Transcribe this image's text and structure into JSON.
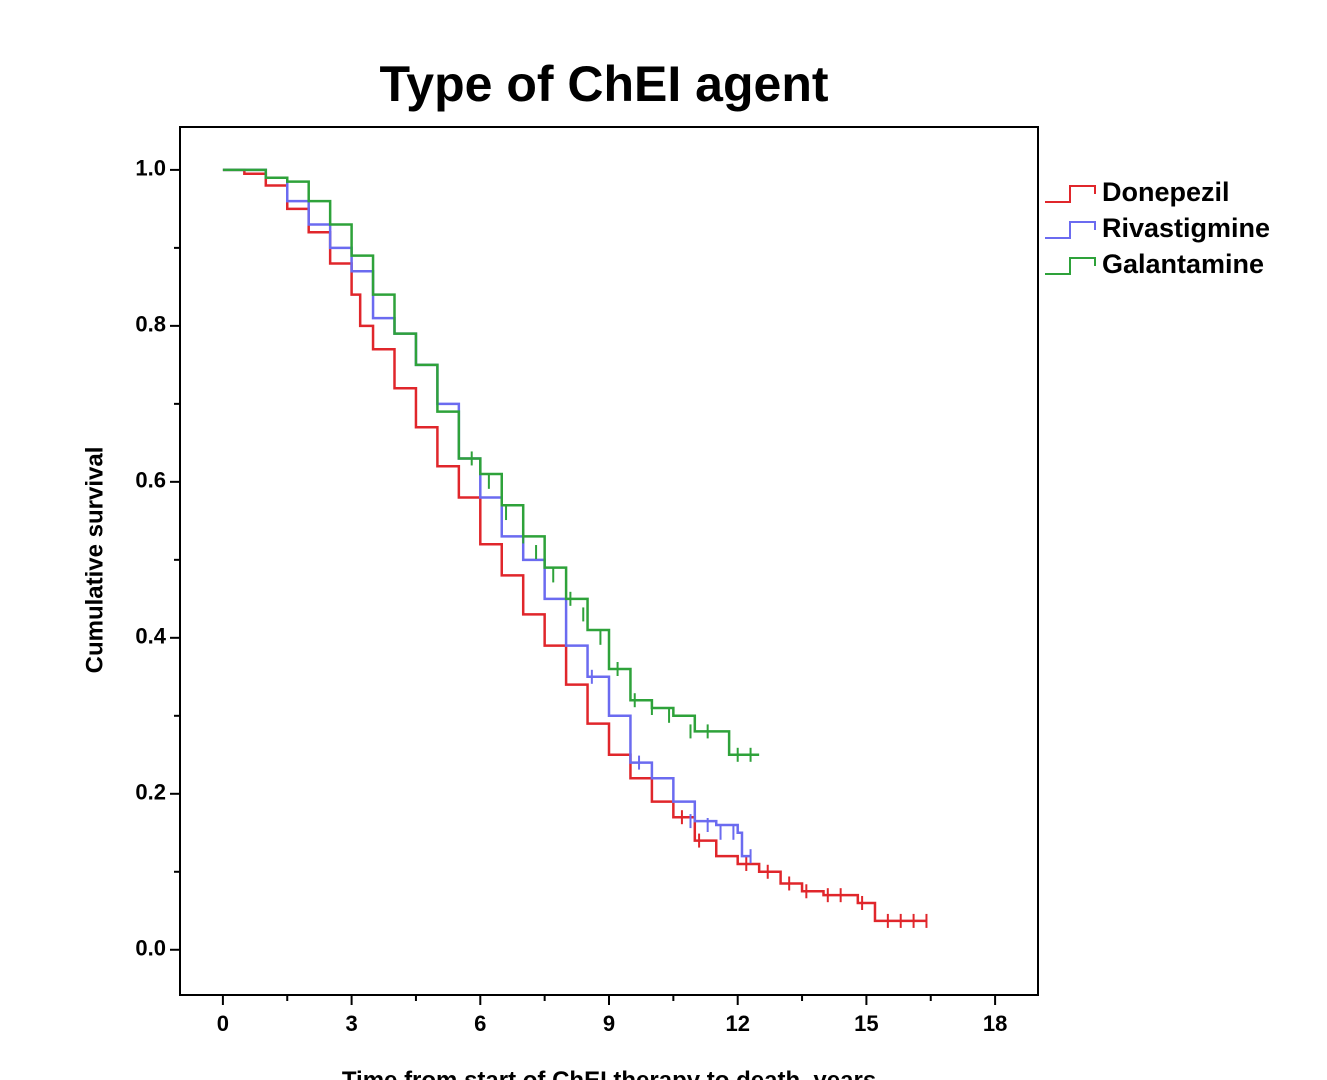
{
  "chart_data": {
    "type": "survival",
    "title": "Type of ChEI agent",
    "xlabel": "Time from start of ChEI therapy to death, years",
    "ylabel": "Cumulative survival",
    "xlim": [
      -1,
      19
    ],
    "ylim": [
      -0.058,
      1.055
    ],
    "xticks": [
      0,
      3,
      6,
      9,
      12,
      15,
      18
    ],
    "xminor": [
      1.5,
      4.5,
      7.5,
      10.5,
      13.5,
      16.5
    ],
    "yticks": [
      {
        "value": 0,
        "label": "0.0"
      },
      0.2,
      0.4,
      0.6,
      0.8,
      {
        "value": 1,
        "label": "1.0"
      }
    ],
    "yminor": [
      0.1,
      0.3,
      0.5,
      0.7,
      0.9
    ],
    "series": [
      {
        "name": "Donepezil",
        "color": "#e0262b",
        "x": [
          0,
          0.5,
          1,
          1.5,
          2,
          2.5,
          3,
          3.2,
          3.5,
          4,
          4.5,
          5,
          5.5,
          6,
          6.5,
          7,
          7.5,
          8,
          8.5,
          9,
          9.5,
          10,
          10.5,
          11,
          11.5,
          12,
          12.5,
          13,
          13.5,
          14,
          14.8,
          15.2,
          16.4
        ],
        "values": [
          1,
          0.995,
          0.98,
          0.95,
          0.92,
          0.88,
          0.84,
          0.8,
          0.77,
          0.72,
          0.67,
          0.62,
          0.58,
          0.52,
          0.48,
          0.43,
          0.39,
          0.34,
          0.29,
          0.25,
          0.22,
          0.19,
          0.17,
          0.14,
          0.12,
          0.11,
          0.1,
          0.085,
          0.075,
          0.07,
          0.06,
          0.037,
          0.037
        ],
        "censored_x": [
          10.7,
          11.1,
          12.2,
          12.7,
          13.2,
          13.6,
          14.1,
          14.4,
          14.9,
          15.5,
          15.8,
          16.1,
          16.4
        ],
        "censored_y": [
          0.17,
          0.14,
          0.11,
          0.1,
          0.085,
          0.075,
          0.07,
          0.07,
          0.06,
          0.037,
          0.037,
          0.037,
          0.037
        ]
      },
      {
        "name": "Rivastigmine",
        "color": "#6b6bf0",
        "x": [
          0,
          1,
          1.5,
          2,
          2.5,
          3,
          3.5,
          4,
          4.5,
          5,
          5.5,
          6,
          6.5,
          7,
          7.5,
          8,
          8.5,
          9,
          9.5,
          10,
          10.5,
          11,
          11.5,
          12,
          12.1,
          12.3
        ],
        "values": [
          1,
          0.99,
          0.96,
          0.93,
          0.9,
          0.87,
          0.81,
          0.79,
          0.75,
          0.7,
          0.63,
          0.58,
          0.53,
          0.5,
          0.45,
          0.39,
          0.35,
          0.3,
          0.24,
          0.22,
          0.19,
          0.165,
          0.16,
          0.15,
          0.12,
          0.12
        ],
        "censored_x": [
          8.6,
          9.7,
          10.9,
          11.3,
          11.6,
          11.9,
          12.3
        ],
        "censored_y": [
          0.35,
          0.24,
          0.165,
          0.16,
          0.15,
          0.15,
          0.12
        ]
      },
      {
        "name": "Galantamine",
        "color": "#2ea23a",
        "x": [
          0,
          1,
          1.5,
          2,
          2.5,
          3,
          3.5,
          4,
          4.5,
          5,
          5.5,
          6,
          6.5,
          7,
          7.5,
          8,
          8.5,
          9,
          9.5,
          10,
          10.5,
          11,
          11.8,
          11.8,
          12.5
        ],
        "values": [
          1,
          0.99,
          0.985,
          0.96,
          0.93,
          0.89,
          0.84,
          0.79,
          0.75,
          0.69,
          0.63,
          0.61,
          0.57,
          0.53,
          0.49,
          0.45,
          0.41,
          0.36,
          0.32,
          0.31,
          0.3,
          0.28,
          0.28,
          0.25,
          0.25
        ],
        "censored_x": [
          5.8,
          6.2,
          6.6,
          7.0,
          7.3,
          7.7,
          8.1,
          8.4,
          8.8,
          9.2,
          9.6,
          10.0,
          10.4,
          10.9,
          11.3,
          12.0,
          12.3
        ],
        "censored_y": [
          0.63,
          0.6,
          0.56,
          0.53,
          0.51,
          0.48,
          0.45,
          0.43,
          0.4,
          0.36,
          0.32,
          0.31,
          0.3,
          0.28,
          0.28,
          0.25,
          0.25
        ]
      }
    ],
    "legend": "top-right"
  }
}
